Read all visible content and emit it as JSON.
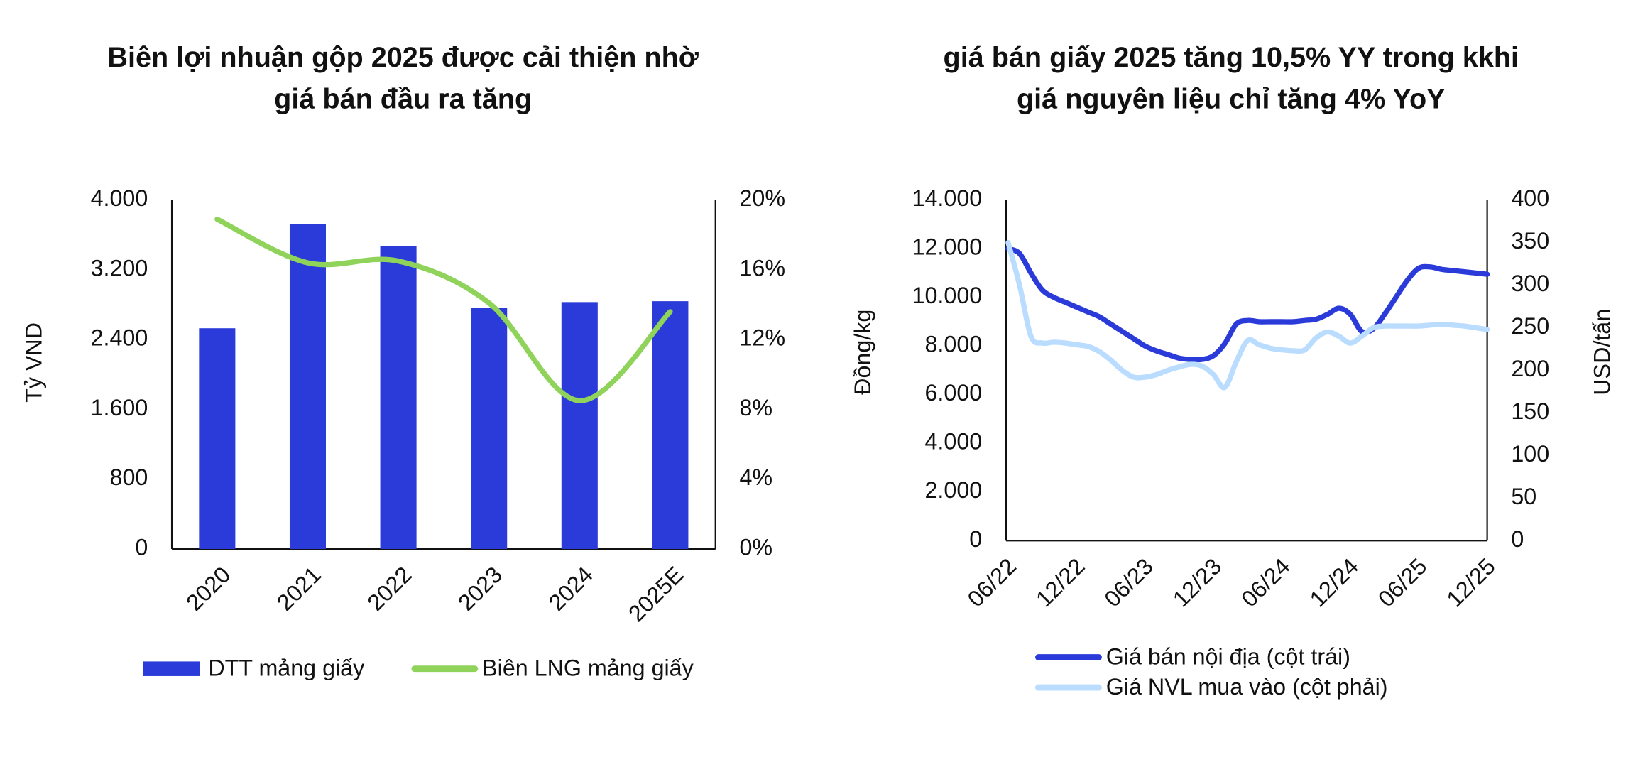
{
  "chart_data": [
    {
      "type": "bar",
      "title": [
        "Biên lợi nhuận gộp 2025 được cải thiện nhờ",
        "giá bán đầu ra tăng"
      ],
      "ylabel": "Tỷ VND",
      "categories": [
        "2020",
        "2021",
        "2022",
        "2023",
        "2024",
        "2025E"
      ],
      "series": [
        {
          "name": "DTT mảng giấy",
          "type": "bar",
          "color": "#2b3bd9",
          "values": [
            2530,
            3725,
            3475,
            2760,
            2830,
            2840
          ]
        },
        {
          "name": "Biên LNG mảng giấy",
          "type": "line",
          "axis": "y2",
          "smooth": true,
          "color": "#8fd35a",
          "values": [
            18.9,
            16.4,
            16.5,
            14.1,
            8.5,
            13.6
          ]
        }
      ],
      "ylim": [
        0,
        4000
      ],
      "yticks": [
        {
          "value": 0,
          "label": "0"
        },
        {
          "value": 800,
          "label": "800"
        },
        {
          "value": 1600,
          "label": "1.600"
        },
        {
          "value": 2400,
          "label": "2.400"
        },
        {
          "value": 3200,
          "label": "3.200"
        },
        {
          "value": 4000,
          "label": "4.000"
        }
      ],
      "y2lim": [
        0,
        20
      ],
      "y2ticks": [
        {
          "value": 0,
          "label": "0%"
        },
        {
          "value": 4,
          "label": "4%"
        },
        {
          "value": 8,
          "label": "8%"
        },
        {
          "value": 12,
          "label": "12%"
        },
        {
          "value": 16,
          "label": "16%"
        },
        {
          "value": 20,
          "label": "20%"
        }
      ],
      "legend": "bottom"
    },
    {
      "type": "line",
      "title": [
        "giá bán giấy 2025 tăng 10,5% YY trong kkhi",
        "giá nguyên liệu chỉ tăng 4% YoY"
      ],
      "ylabel": "Đồng/kg",
      "y2label": "USD/tấn",
      "categories": [
        "06/22",
        null,
        null,
        null,
        null,
        null,
        "12/22",
        null,
        null,
        null,
        null,
        null,
        "06/23",
        null,
        null,
        null,
        null,
        null,
        "12/23",
        null,
        null,
        null,
        null,
        null,
        "06/24",
        null,
        null,
        null,
        null,
        null,
        "12/24",
        null,
        null,
        null,
        null,
        null,
        "06/25",
        null,
        null,
        null,
        null,
        null,
        "12/25"
      ],
      "series": [
        {
          "name": "Giá bán nội địa (cột trái)",
          "smooth": true,
          "color": "#2b3bd9",
          "values": [
            12000,
            11800,
            11000,
            10300,
            10000,
            9800,
            9600,
            9400,
            9200,
            8900,
            8600,
            8300,
            8000,
            7800,
            7650,
            7500,
            7450,
            7450,
            7600,
            8100,
            8900,
            9050,
            9000,
            9000,
            9000,
            9000,
            9050,
            9100,
            9300,
            9550,
            9300,
            8600,
            8700,
            9300,
            10000,
            10700,
            11200,
            11250,
            11150,
            11100,
            11050,
            11000,
            10950
          ]
        },
        {
          "name": "Giá NVL mua vào (cột phải)",
          "axis": "y2",
          "smooth": true,
          "color": "#b9dcff",
          "values": [
            350,
            300,
            240,
            232,
            233,
            232,
            230,
            228,
            222,
            212,
            200,
            192,
            192,
            195,
            200,
            204,
            207,
            205,
            195,
            180,
            210,
            235,
            230,
            226,
            224,
            223,
            224,
            238,
            245,
            240,
            232,
            240,
            250,
            252,
            252,
            252,
            252,
            253,
            254,
            253,
            252,
            250,
            248
          ]
        }
      ],
      "ylim": [
        0,
        14000
      ],
      "yticks": [
        {
          "value": 0,
          "label": "0"
        },
        {
          "value": 2000,
          "label": "2.000"
        },
        {
          "value": 4000,
          "label": "4.000"
        },
        {
          "value": 6000,
          "label": "6.000"
        },
        {
          "value": 8000,
          "label": "8.000"
        },
        {
          "value": 10000,
          "label": "10.000"
        },
        {
          "value": 12000,
          "label": "12.000"
        },
        {
          "value": 14000,
          "label": "14.000"
        }
      ],
      "y2lim": [
        0,
        400
      ],
      "y2ticks": [
        0,
        50,
        100,
        150,
        200,
        250,
        300,
        350,
        400
      ],
      "legend": "bottom"
    }
  ]
}
